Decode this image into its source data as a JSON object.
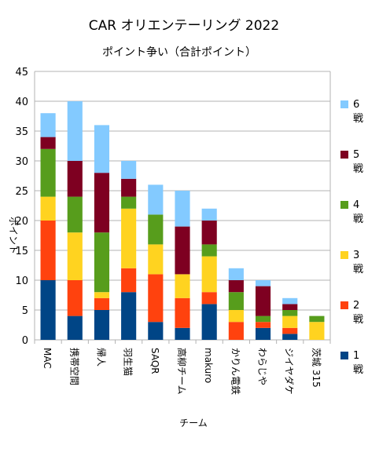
{
  "chart_data": {
    "type": "bar",
    "stacked": true,
    "title": "CAR オリエンテーリング 2022",
    "subtitle": "ポイント争い（合計ポイント）",
    "xlabel": "チーム",
    "ylabel": "ポイント",
    "ylim": [
      0,
      45
    ],
    "yticks": [
      0,
      5,
      10,
      15,
      20,
      25,
      30,
      35,
      40,
      45
    ],
    "grid": true,
    "legend_position": "right",
    "categories": [
      "MAC",
      "携帯空間",
      "帰人",
      "羽生猫",
      "SAQR",
      "高柳チーム",
      "makuro",
      "かりん電鉄",
      "わらじや",
      "ジイヤダケ",
      "茨城 315"
    ],
    "series": [
      {
        "name_num": "1",
        "name_unit": "戦",
        "color": "#004586",
        "values": [
          10,
          4,
          5,
          8,
          3,
          2,
          6,
          0,
          2,
          1,
          0
        ]
      },
      {
        "name_num": "2",
        "name_unit": "戦",
        "color": "#ff420e",
        "values": [
          10,
          6,
          2,
          4,
          8,
          5,
          2,
          3,
          1,
          1,
          0
        ]
      },
      {
        "name_num": "3",
        "name_unit": "戦",
        "color": "#ffd320",
        "values": [
          4,
          8,
          1,
          10,
          5,
          4,
          6,
          2,
          0,
          2,
          3
        ]
      },
      {
        "name_num": "4",
        "name_unit": "戦",
        "color": "#579d1c",
        "values": [
          8,
          6,
          10,
          2,
          5,
          0,
          2,
          3,
          1,
          1,
          1
        ]
      },
      {
        "name_num": "5",
        "name_unit": "戦",
        "color": "#7e0021",
        "values": [
          2,
          6,
          10,
          3,
          0,
          8,
          4,
          2,
          5,
          1,
          0
        ]
      },
      {
        "name_num": "6",
        "name_unit": "戦",
        "color": "#83caff",
        "values": [
          4,
          10,
          8,
          3,
          5,
          6,
          2,
          2,
          1,
          1,
          0
        ]
      }
    ]
  }
}
